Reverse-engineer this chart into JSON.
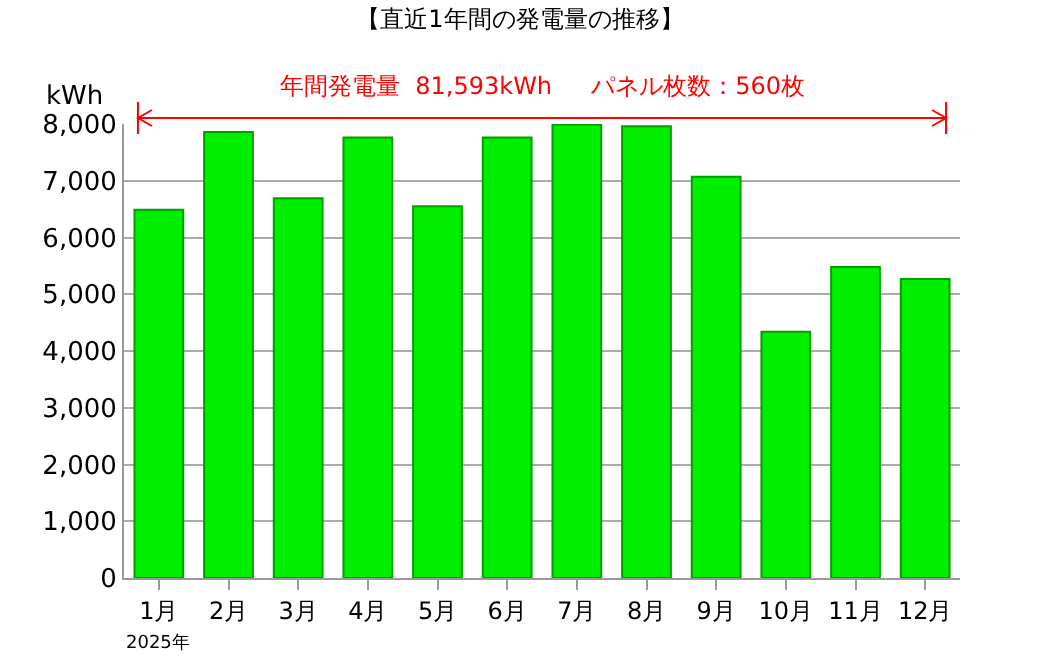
{
  "chart_data": {
    "type": "bar",
    "title": "【直近1年間の発電量の推移】",
    "ylabel": "kWh",
    "categories": [
      "1月",
      "2月",
      "3月",
      "4月",
      "5月",
      "6月",
      "7月",
      "8月",
      "9月",
      "10月",
      "11月",
      "12月"
    ],
    "values": [
      6490,
      7860,
      6690,
      7760,
      6550,
      7760,
      7990,
      7960,
      7070,
      4340,
      5480,
      5270
    ],
    "color": "#00ee00",
    "ylim": [
      0,
      8000
    ],
    "yticks": [
      {
        "value": 0,
        "label": "0"
      },
      {
        "value": 1000,
        "label": "1,000"
      },
      {
        "value": 2000,
        "label": "2,000"
      },
      {
        "value": 3000,
        "label": "3,000"
      },
      {
        "value": 4000,
        "label": "4,000"
      },
      {
        "value": 5000,
        "label": "5,000"
      },
      {
        "value": 6000,
        "label": "6,000"
      },
      {
        "value": 7000,
        "label": "7,000"
      },
      {
        "value": 8000,
        "label": "8,000"
      }
    ],
    "grid": "y",
    "annotations": [
      "年間発電量  81,593kWh　  パネル枚数：560枚",
      "2025年"
    ]
  }
}
